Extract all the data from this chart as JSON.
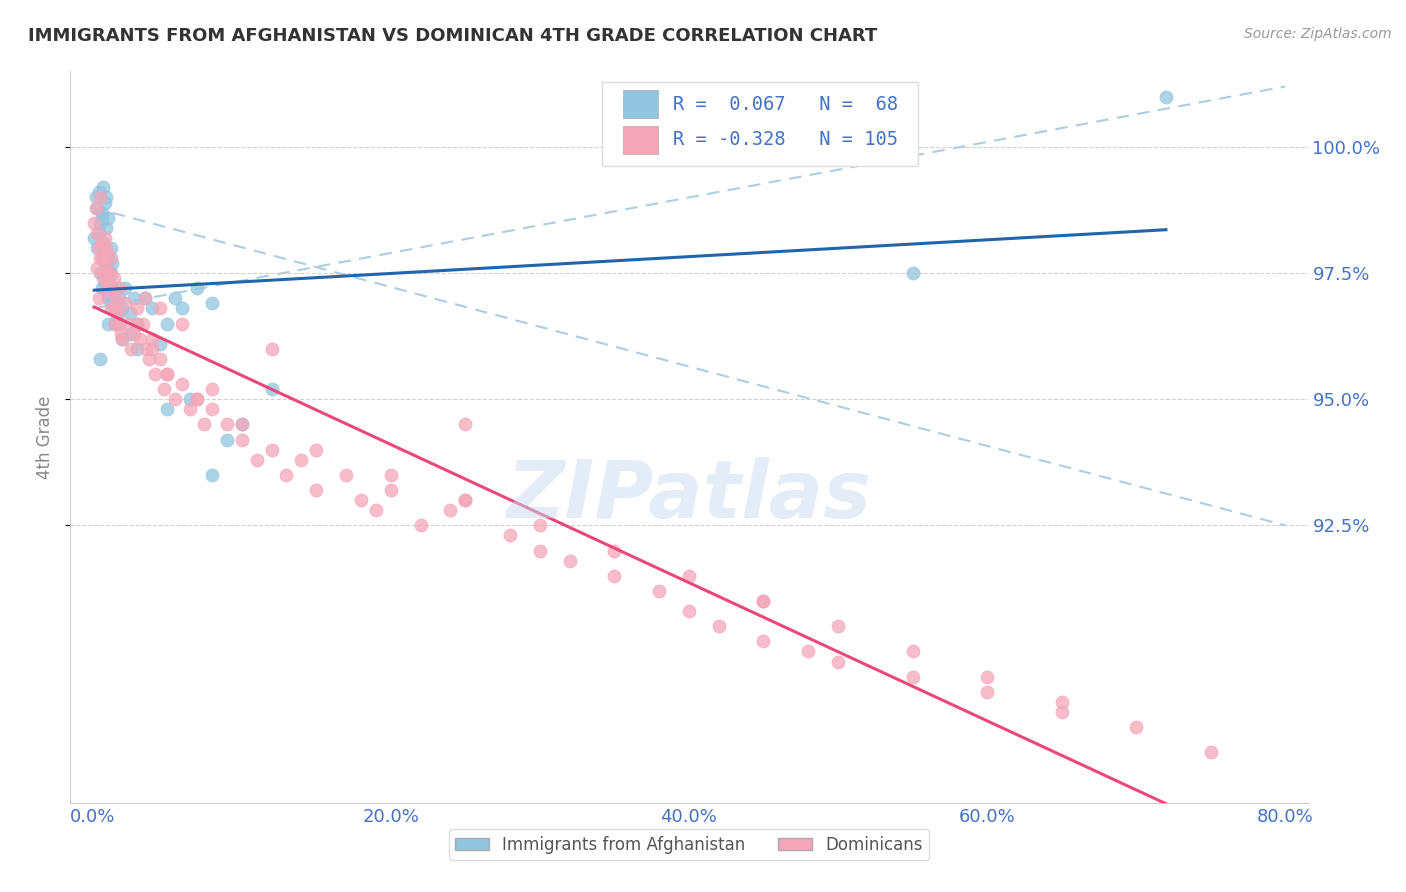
{
  "title": "IMMIGRANTS FROM AFGHANISTAN VS DOMINICAN 4TH GRADE CORRELATION CHART",
  "source_text": "Source: ZipAtlas.com",
  "ylabel": "4th Grade",
  "xlim": [
    0.0,
    80.0
  ],
  "ylim": [
    87.0,
    101.5
  ],
  "yticks": [
    92.5,
    95.0,
    97.5,
    100.0
  ],
  "xticks": [
    0.0,
    20.0,
    40.0,
    60.0,
    80.0
  ],
  "ytick_labels": [
    "92.5%",
    "95.0%",
    "97.5%",
    "100.0%"
  ],
  "xtick_labels": [
    "0.0%",
    "20.0%",
    "40.0%",
    "60.0%",
    "80.0%"
  ],
  "legend_labels": [
    "Immigrants from Afghanistan",
    "Dominicans"
  ],
  "R_afghan": 0.067,
  "N_afghan": 68,
  "R_dominican": -0.328,
  "N_dominican": 105,
  "blue_color": "#92c5de",
  "pink_color": "#f4a6b8",
  "blue_line_color": "#2166ac",
  "pink_line_color": "#e8497a",
  "dash_color": "#aecde0",
  "background_color": "#ffffff",
  "watermark_text": "ZIPatlas",
  "watermark_color": "#c8daf0",
  "axis_label_color": "#4472c4",
  "title_color": "#333333",
  "source_color": "#999999",
  "ylabel_color": "#888888",
  "afghan_x": [
    0.1,
    0.2,
    0.3,
    0.4,
    0.5,
    0.6,
    0.7,
    0.8,
    0.9,
    1.0,
    0.3,
    0.4,
    0.6,
    0.7,
    0.8,
    0.9,
    1.0,
    1.1,
    1.2,
    1.3,
    0.5,
    0.6,
    0.7,
    0.8,
    0.9,
    1.0,
    1.1,
    1.2,
    1.3,
    1.4,
    0.8,
    0.9,
    1.0,
    1.1,
    1.2,
    1.3,
    1.4,
    1.5,
    1.6,
    1.7,
    1.5,
    1.8,
    2.0,
    2.2,
    2.5,
    2.8,
    3.0,
    3.5,
    4.0,
    5.0,
    5.5,
    6.0,
    7.0,
    8.0,
    2.0,
    3.0,
    1.0,
    0.5,
    2.5,
    4.5,
    5.0,
    6.5,
    8.0,
    9.0,
    10.0,
    12.0,
    55.0,
    72.0
  ],
  "afghan_y": [
    98.2,
    99.0,
    98.8,
    99.1,
    98.5,
    98.7,
    99.2,
    98.9,
    99.0,
    98.6,
    98.0,
    98.3,
    98.6,
    98.1,
    97.9,
    98.4,
    97.8,
    97.5,
    98.0,
    97.7,
    97.5,
    97.2,
    97.8,
    97.3,
    97.6,
    97.1,
    97.4,
    96.9,
    97.2,
    97.0,
    97.3,
    97.6,
    97.0,
    97.8,
    97.5,
    97.2,
    96.8,
    97.1,
    96.6,
    96.9,
    96.5,
    97.0,
    96.8,
    97.2,
    96.7,
    97.0,
    96.5,
    97.0,
    96.8,
    96.5,
    97.0,
    96.8,
    97.2,
    96.9,
    96.2,
    96.0,
    96.5,
    95.8,
    96.3,
    96.1,
    94.8,
    95.0,
    93.5,
    94.2,
    94.5,
    95.2,
    97.5,
    101.0
  ],
  "dominican_x": [
    0.1,
    0.2,
    0.3,
    0.4,
    0.5,
    0.6,
    0.7,
    0.8,
    0.9,
    1.0,
    0.3,
    0.4,
    0.5,
    0.6,
    0.7,
    0.8,
    0.9,
    1.0,
    1.1,
    1.2,
    1.0,
    1.1,
    1.2,
    1.3,
    1.4,
    1.5,
    1.6,
    1.7,
    1.8,
    1.9,
    1.5,
    1.8,
    2.0,
    2.2,
    2.4,
    2.6,
    2.8,
    3.0,
    3.2,
    3.4,
    3.6,
    3.8,
    4.0,
    4.2,
    4.5,
    4.8,
    5.0,
    5.5,
    6.0,
    6.5,
    7.0,
    7.5,
    8.0,
    9.0,
    10.0,
    11.0,
    12.0,
    13.0,
    14.0,
    15.0,
    17.0,
    18.0,
    19.0,
    20.0,
    22.0,
    24.0,
    25.0,
    28.0,
    30.0,
    32.0,
    35.0,
    38.0,
    40.0,
    42.0,
    45.0,
    48.0,
    50.0,
    55.0,
    60.0,
    65.0,
    3.0,
    4.0,
    5.0,
    7.0,
    10.0,
    15.0,
    20.0,
    25.0,
    30.0,
    35.0,
    40.0,
    45.0,
    50.0,
    55.0,
    60.0,
    65.0,
    70.0,
    75.0,
    12.0,
    8.0,
    6.0,
    4.5,
    3.5,
    25.0,
    45.0
  ],
  "dominican_y": [
    98.5,
    98.8,
    98.3,
    98.0,
    99.0,
    97.8,
    97.5,
    98.2,
    97.9,
    97.3,
    97.6,
    97.0,
    97.8,
    98.1,
    97.4,
    97.7,
    98.0,
    97.2,
    97.5,
    97.8,
    97.2,
    97.5,
    96.8,
    97.1,
    97.4,
    96.5,
    97.0,
    96.7,
    97.2,
    96.3,
    96.8,
    96.5,
    96.2,
    96.9,
    96.5,
    96.0,
    96.3,
    96.8,
    96.2,
    96.5,
    96.0,
    95.8,
    96.2,
    95.5,
    95.8,
    95.2,
    95.5,
    95.0,
    95.3,
    94.8,
    95.0,
    94.5,
    94.8,
    94.5,
    94.2,
    93.8,
    94.0,
    93.5,
    93.8,
    93.2,
    93.5,
    93.0,
    92.8,
    93.2,
    92.5,
    92.8,
    93.0,
    92.3,
    92.0,
    91.8,
    91.5,
    91.2,
    90.8,
    90.5,
    90.2,
    90.0,
    89.8,
    89.5,
    89.2,
    88.8,
    96.5,
    96.0,
    95.5,
    95.0,
    94.5,
    94.0,
    93.5,
    93.0,
    92.5,
    92.0,
    91.5,
    91.0,
    90.5,
    90.0,
    89.5,
    89.0,
    88.5,
    88.0,
    96.0,
    95.2,
    96.5,
    96.8,
    97.0,
    94.5,
    91.0
  ]
}
